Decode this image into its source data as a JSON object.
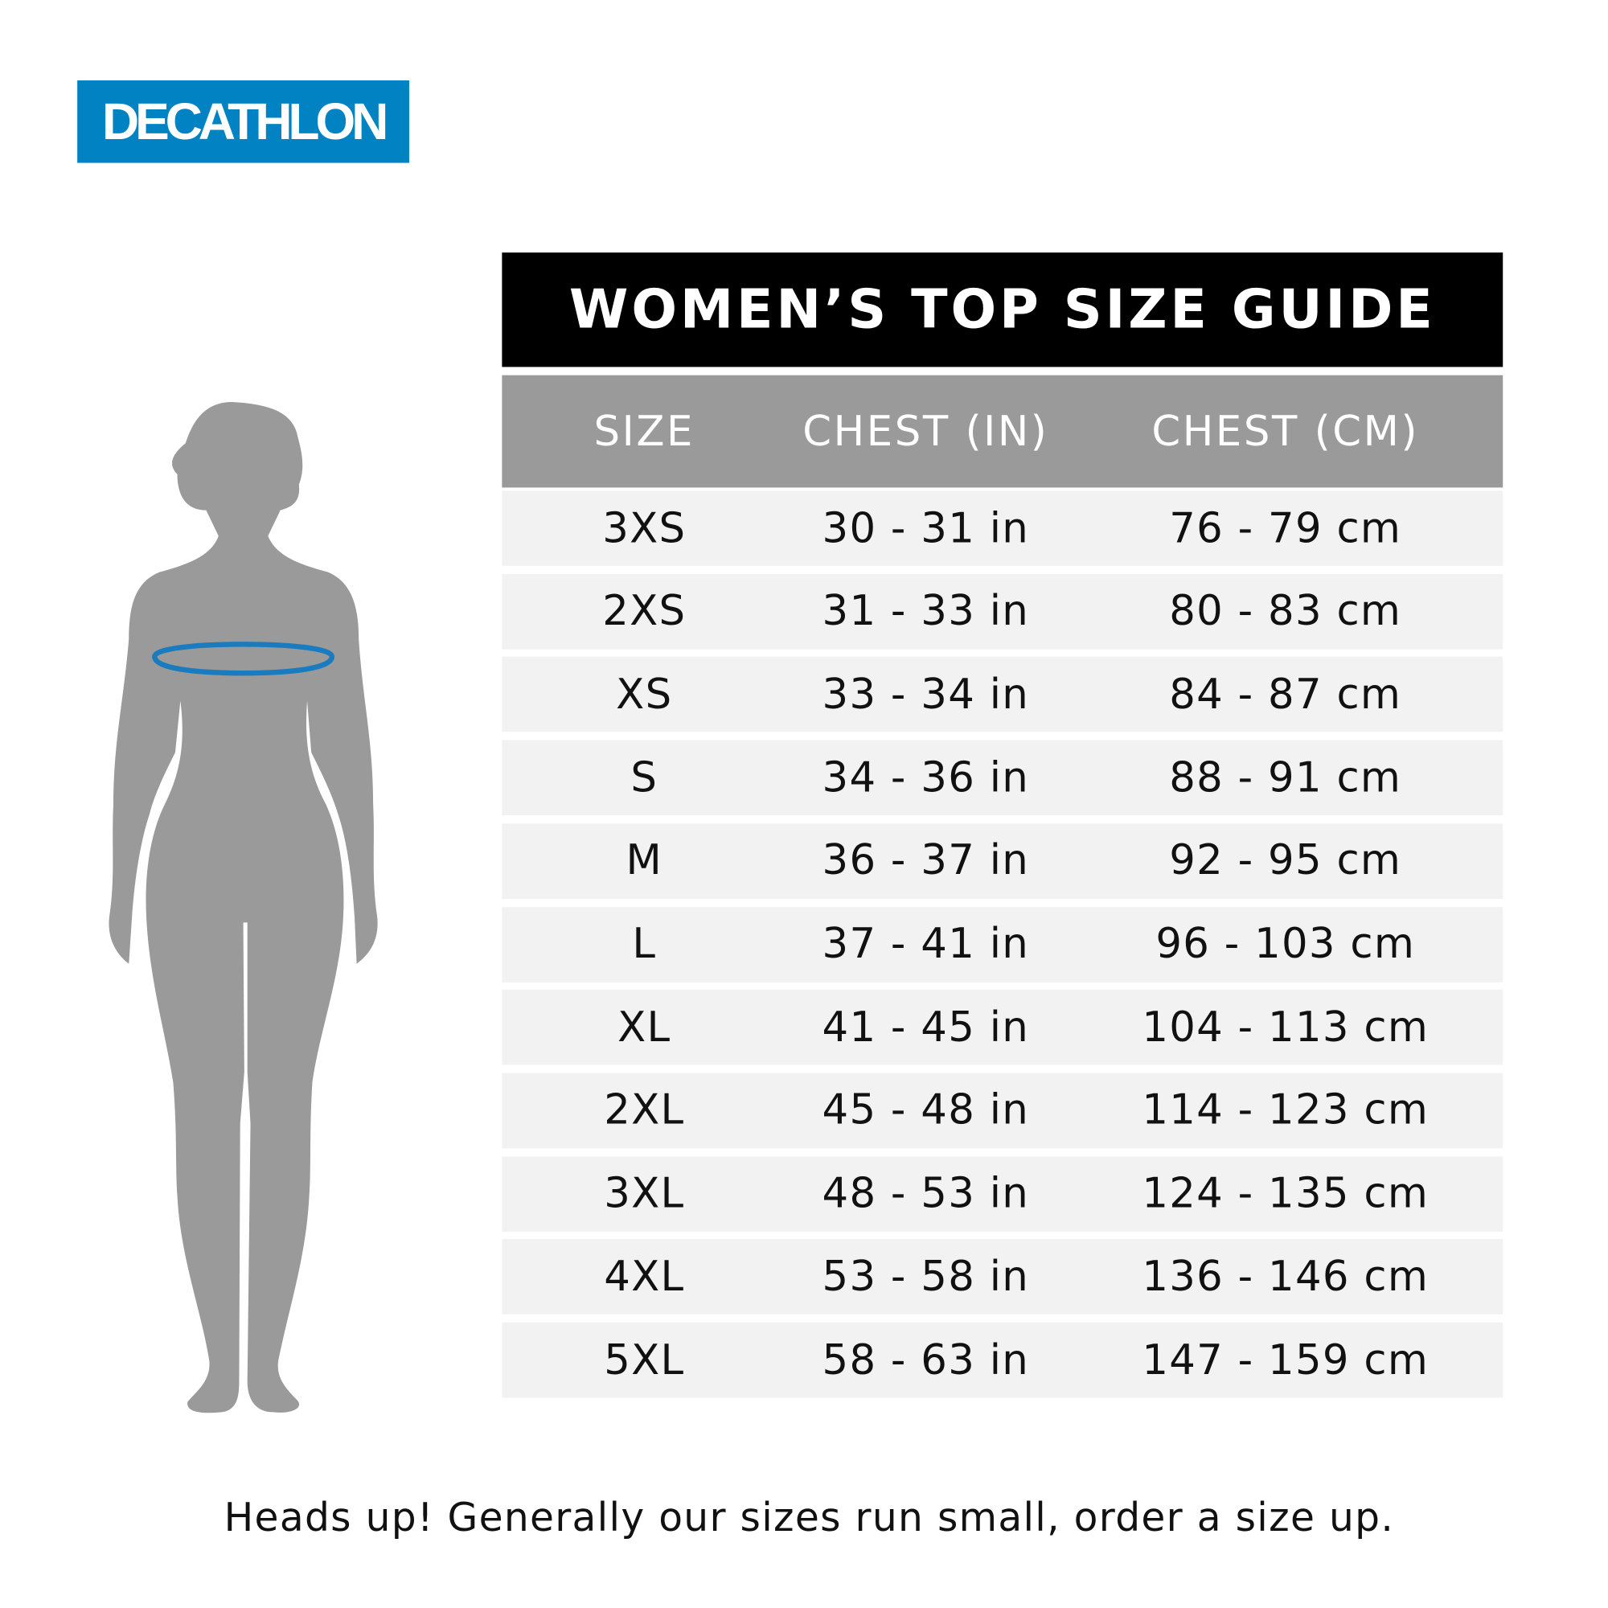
{
  "brand": {
    "logo_text": "DECATHLON",
    "color": "#0082c3"
  },
  "title": "WOMEN’S TOP SIZE GUIDE",
  "table": {
    "headers": [
      "SIZE",
      "CHEST (IN)",
      "CHEST (CM)"
    ],
    "rows": [
      [
        "3XS",
        "30 - 31 in",
        "76 - 79 cm"
      ],
      [
        "2XS",
        "31 - 33 in",
        "80 - 83 cm"
      ],
      [
        "XS",
        "33 - 34 in",
        "84 - 87 cm"
      ],
      [
        "S",
        "34 - 36 in",
        "88 - 91 cm"
      ],
      [
        "M",
        "36 - 37 in",
        "92 - 95 cm"
      ],
      [
        "L",
        "37 - 41 in",
        "96 - 103 cm"
      ],
      [
        "XL",
        "41 - 45 in",
        "104 - 113 cm"
      ],
      [
        "2XL",
        "45 - 48 in",
        "114 - 123 cm"
      ],
      [
        "3XL",
        "48 - 53 in",
        "124 - 135 cm"
      ],
      [
        "4XL",
        "53 - 58 in",
        "136 - 146 cm"
      ],
      [
        "5XL",
        "58 - 63 in",
        "147 - 159 cm"
      ]
    ]
  },
  "figure": {
    "icon": "female-silhouette-chest-measure-icon",
    "body_color": "#9a9a9a",
    "measure_color": "#1a7bbf"
  },
  "footer": "Heads up! Generally our sizes run small, order a size up."
}
